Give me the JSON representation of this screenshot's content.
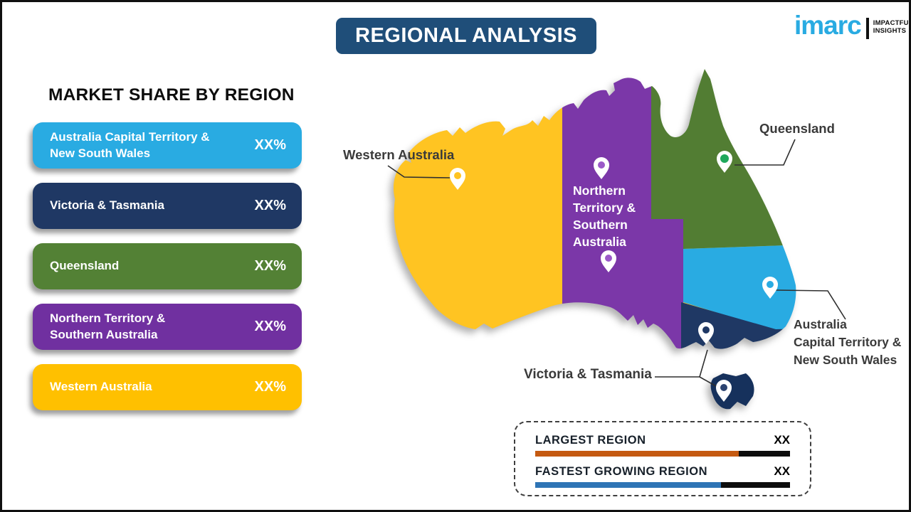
{
  "header": {
    "title": "REGIONAL ANALYSIS"
  },
  "logo": {
    "brand": "imarc",
    "tagline1": "IMPACTFUL",
    "tagline2": "INSIGHTS",
    "brand_color": "#29ABE2"
  },
  "share_panel": {
    "heading": "MARKET SHARE BY REGION",
    "items": [
      {
        "label": "Australia Capital Territory &\nNew South Wales",
        "value": "XX%",
        "color": "#29ABE2"
      },
      {
        "label": "Victoria & Tasmania",
        "value": "XX%",
        "color": "#1F3864"
      },
      {
        "label": "Queensland",
        "value": "XX%",
        "color": "#538135"
      },
      {
        "label": "Northern Territory &\nSouthern Australia",
        "value": "XX%",
        "color": "#7030A0"
      },
      {
        "label": "Western Australia",
        "value": "XX%",
        "color": "#FFC000"
      }
    ]
  },
  "map": {
    "regions": {
      "western_australia": {
        "label": "Western Australia",
        "color": "#FFC422"
      },
      "nt_sa": {
        "label": "Northern\nTerritory &\nSouthern\nAustralia",
        "color": "#7B37A8"
      },
      "queensland": {
        "label": "Queensland",
        "color": "#527D33"
      },
      "act_nsw": {
        "label": "Australia\nCapital Territory &\nNew South Wales",
        "color": "#29ABE2"
      },
      "vic_tas": {
        "label": "Victoria & Tasmania",
        "color": "#1F3864"
      },
      "tasmania_color": "#16315C"
    },
    "pin_colors": {
      "western_australia": "#FFC422",
      "nt_sa": "#9B59C8",
      "queensland": "#1FA85C",
      "act_nsw": "#29ABE2",
      "vic_tas": "#1F3864",
      "tasmania": "#2C4370"
    }
  },
  "legend": {
    "rows": [
      {
        "label": "LARGEST REGION",
        "value": "XX",
        "color": "#C55A11",
        "fill_pct": 80
      },
      {
        "label": "FASTEST GROWING REGION",
        "value": "XX",
        "color": "#2E74B5",
        "fill_pct": 73
      }
    ]
  }
}
